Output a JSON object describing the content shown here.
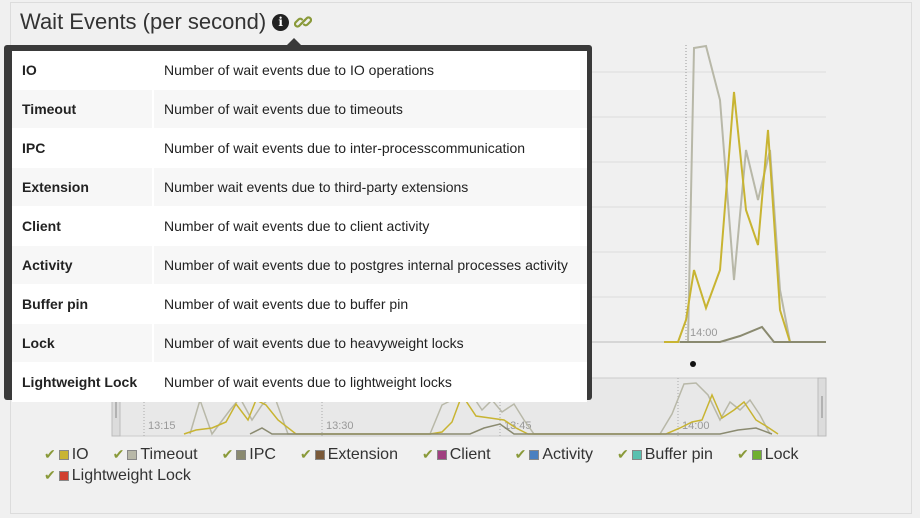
{
  "panel": {
    "title": "Wait Events (per second)",
    "info_icon": "info-icon",
    "link_icon": "link-icon"
  },
  "colors": {
    "IO": "#c8b432",
    "Timeout": "#b8b8a8",
    "IPC": "#8a8a70",
    "Extension": "#7a5a3a",
    "Client": "#a04080",
    "Activity": "#4a80c0",
    "Buffer pin": "#5ac0b0",
    "Lock": "#70b030",
    "Lightweight Lock": "#d04030"
  },
  "tooltip": {
    "rows": [
      {
        "term": "IO",
        "desc": "Number of wait events due to IO operations"
      },
      {
        "term": "Timeout",
        "desc": "Number of wait events due to timeouts"
      },
      {
        "term": "IPC",
        "desc": "Number of wait events due to inter-processcommunication"
      },
      {
        "term": "Extension",
        "desc": "Number wait events due to third-party extensions"
      },
      {
        "term": "Client",
        "desc": "Number of wait events due to client activity"
      },
      {
        "term": "Activity",
        "desc": "Number of wait events due to postgres internal processes activity"
      },
      {
        "term": "Buffer pin",
        "desc": "Number of wait events due to buffer pin"
      },
      {
        "term": "Lock",
        "desc": "Number of wait events due to heavyweight locks"
      },
      {
        "term": "Lightweight Lock",
        "desc": "Number of wait events due to lightweight locks"
      }
    ]
  },
  "main_chart": {
    "time_label": "14:00"
  },
  "navigator": {
    "time_labels": [
      "13:15",
      "13:30",
      "13:45",
      "14:00"
    ]
  },
  "legend": {
    "items": [
      "IO",
      "Timeout",
      "IPC",
      "Extension",
      "Client",
      "Activity",
      "Buffer pin",
      "Lock",
      "Lightweight Lock"
    ]
  }
}
